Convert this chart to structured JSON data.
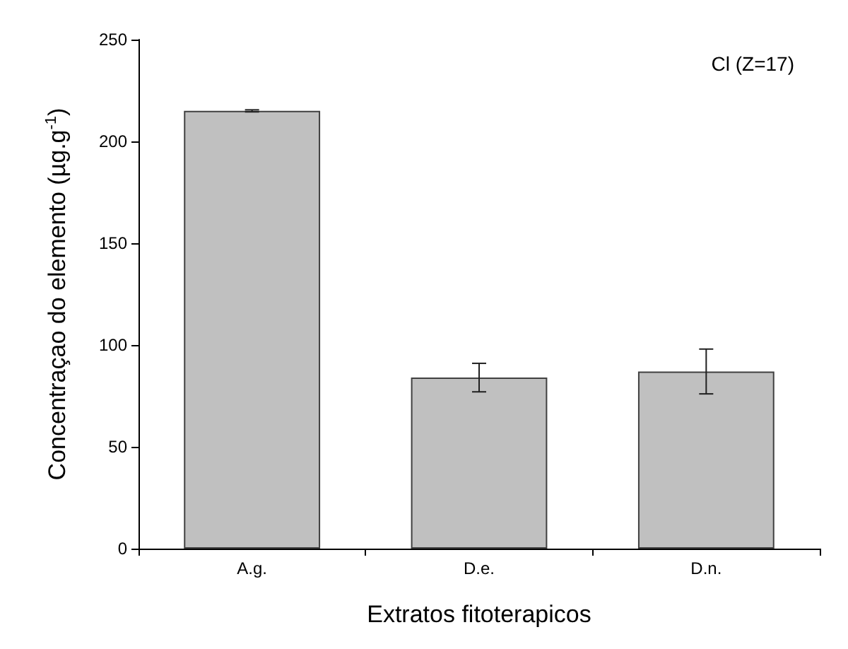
{
  "chart_data": {
    "type": "bar",
    "xlabel": "Extratos fitoterapicos",
    "ylabel": "Concentraçao do elemento (µg.g$^{-1}$)",
    "annotations": [
      "Cl (Z=17)"
    ],
    "categories": [
      "A.g.",
      "D.e.",
      "D.n."
    ],
    "values": [
      215,
      84,
      87
    ],
    "errors": [
      0.5,
      7,
      11
    ],
    "color": "#c0c0c0",
    "ylim": [
      0,
      250
    ],
    "yticks": [
      0,
      50,
      100,
      150,
      200,
      250
    ],
    "grid": false
  }
}
